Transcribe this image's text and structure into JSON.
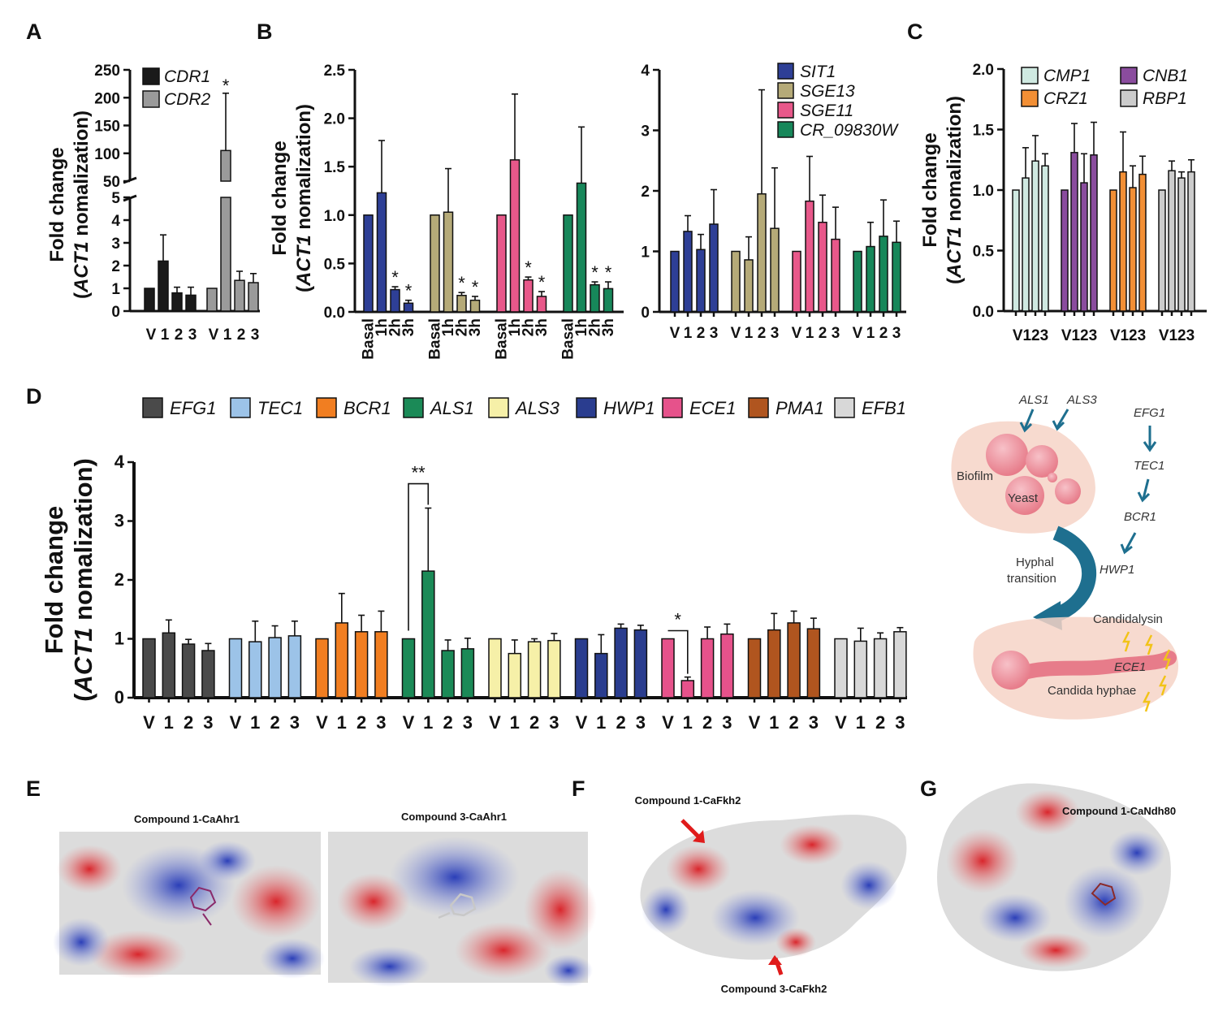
{
  "panel_labels": {
    "A": "A",
    "B": "B",
    "C": "C",
    "D": "D",
    "E": "E",
    "F": "F",
    "G": "G"
  },
  "ylabel_line1": "Fold change",
  "ylabel_gene": "ACT1",
  "ylabel_rest": " nomalization)",
  "ylabel_open": "(",
  "colors": {
    "black": "#1a1a1a",
    "grey": "#9a9a9a",
    "blue": "#2e3f96",
    "khaki": "#b5aa78",
    "pink": "#e8588a",
    "green": "#17875a",
    "mint": "#cfe9e1",
    "orange": "#f28f35",
    "purple": "#8a4c9e",
    "lightgrey": "#cccccc",
    "darkgrey": "#4a4a4a",
    "lightblue": "#9cc3e8",
    "orange2": "#f17e21",
    "green2": "#1b8a57",
    "paleyellow": "#f6f0a8",
    "navy": "#2a3d8f",
    "pink2": "#e6528b",
    "brown": "#b0551f",
    "pale": "#d8d8d8"
  },
  "chart_data": [
    {
      "id": "A",
      "type": "bar",
      "categories": [
        "V",
        "1",
        "2",
        "3"
      ],
      "series": [
        {
          "name": "CDR1",
          "color": "#1a1a1a",
          "values": [
            1,
            2.2,
            0.8,
            0.7
          ],
          "errors": [
            0,
            1.15,
            0.25,
            0.35
          ],
          "stars": [
            "",
            "",
            "",
            ""
          ]
        },
        {
          "name": "CDR2",
          "color": "#9a9a9a",
          "values": [
            1,
            105,
            1.35,
            1.25
          ],
          "errors": [
            0,
            103,
            0.4,
            0.4
          ],
          "stars": [
            "",
            "*",
            "",
            ""
          ]
        }
      ],
      "ylim_lower": [
        0,
        5
      ],
      "ylim_upper": [
        50,
        250
      ],
      "yticks_lower": [
        "0",
        "1",
        "2",
        "3",
        "4",
        "5"
      ],
      "yticks_upper": [
        "50",
        "100",
        "150",
        "200",
        "250"
      ],
      "xlabels": [
        "V",
        "1",
        "2",
        "3",
        "V",
        "1",
        "2",
        "3"
      ]
    },
    {
      "id": "B1",
      "type": "bar",
      "categories": [
        "Basal",
        "1h",
        "2h",
        "3h"
      ],
      "series": [
        {
          "name": "SIT1",
          "color": "#2e3f96",
          "values": [
            1,
            1.23,
            0.23,
            0.09
          ],
          "errors": [
            0,
            0.54,
            0.03,
            0.03
          ],
          "stars": [
            "",
            "",
            "*",
            "*"
          ]
        },
        {
          "name": "SGE13",
          "color": "#b5aa78",
          "values": [
            1,
            1.03,
            0.17,
            0.12
          ],
          "errors": [
            0,
            0.45,
            0.03,
            0.04
          ],
          "stars": [
            "",
            "",
            "*",
            "*"
          ]
        },
        {
          "name": "SGE11",
          "color": "#e8588a",
          "values": [
            1,
            1.57,
            0.33,
            0.16
          ],
          "errors": [
            0,
            0.68,
            0.03,
            0.05
          ],
          "stars": [
            "",
            "",
            "*",
            "*"
          ]
        },
        {
          "name": "CR_09830W",
          "color": "#17875a",
          "values": [
            1,
            1.33,
            0.28,
            0.24
          ],
          "errors": [
            0,
            0.58,
            0.03,
            0.07
          ],
          "stars": [
            "",
            "",
            "*",
            "*"
          ]
        }
      ],
      "ylim": [
        0,
        2.5
      ],
      "yticks": [
        "0.0",
        "0.5",
        "1.0",
        "1.5",
        "2.0",
        "2.5"
      ],
      "xlabels": [
        "Basal",
        "1h",
        "2h",
        "3h"
      ]
    },
    {
      "id": "B2",
      "type": "bar",
      "categories": [
        "V",
        "1",
        "2",
        "3"
      ],
      "series": [
        {
          "name": "SIT1",
          "color": "#2e3f96",
          "values": [
            1,
            1.33,
            1.03,
            1.45
          ],
          "errors": [
            0,
            0.26,
            0.25,
            0.57
          ],
          "stars": [
            "",
            "",
            "",
            ""
          ]
        },
        {
          "name": "SGE13",
          "color": "#b5aa78",
          "values": [
            1,
            0.86,
            1.95,
            1.38
          ],
          "errors": [
            0,
            0.38,
            1.72,
            1.0
          ],
          "stars": [
            "",
            "",
            "",
            ""
          ]
        },
        {
          "name": "SGE11",
          "color": "#e8588a",
          "values": [
            1,
            1.83,
            1.48,
            1.2
          ],
          "errors": [
            0,
            0.74,
            0.45,
            0.53
          ],
          "stars": [
            "",
            "",
            "",
            ""
          ]
        },
        {
          "name": "CR_09830W",
          "color": "#17875a",
          "values": [
            1,
            1.08,
            1.25,
            1.15
          ],
          "errors": [
            0,
            0.4,
            0.6,
            0.35
          ],
          "stars": [
            "",
            "",
            "",
            ""
          ]
        }
      ],
      "ylim": [
        0,
        4
      ],
      "yticks": [
        "0",
        "1",
        "2",
        "3",
        "4"
      ],
      "xlabels": [
        "V",
        "1",
        "2",
        "3"
      ],
      "legend": [
        "SIT1",
        "SGE13",
        "SGE11",
        "CR_09830W"
      ]
    },
    {
      "id": "C",
      "type": "bar",
      "categories": [
        "V",
        "1",
        "2",
        "3"
      ],
      "series": [
        {
          "name": "CMP1",
          "color": "#cfe9e1",
          "values": [
            1,
            1.1,
            1.24,
            1.2
          ],
          "errors": [
            0,
            0.25,
            0.21,
            0.1
          ],
          "stars": [
            "",
            "",
            "",
            ""
          ]
        },
        {
          "name": "CNB1",
          "color": "#8a4c9e",
          "values": [
            1,
            1.31,
            1.06,
            1.29
          ],
          "errors": [
            0,
            0.24,
            0.24,
            0.27
          ],
          "stars": [
            "",
            "",
            "",
            ""
          ]
        },
        {
          "name": "CRZ1",
          "color": "#f28f35",
          "values": [
            1,
            1.15,
            1.02,
            1.13
          ],
          "errors": [
            0,
            0.33,
            0.18,
            0.15
          ],
          "stars": [
            "",
            "",
            "",
            ""
          ]
        },
        {
          "name": "RBP1",
          "color": "#cccccc",
          "values": [
            1,
            1.16,
            1.1,
            1.15
          ],
          "errors": [
            0,
            0.08,
            0.05,
            0.1
          ],
          "stars": [
            "",
            "",
            "",
            ""
          ]
        }
      ],
      "ylim": [
        0,
        2.0
      ],
      "yticks": [
        "0.0",
        "0.5",
        "1.0",
        "1.5",
        "2.0"
      ],
      "xlabel_group": "V123",
      "legend": [
        "CMP1",
        "CRZ1",
        "CNB1",
        "RBP1"
      ]
    },
    {
      "id": "D",
      "type": "bar",
      "categories": [
        "V",
        "1",
        "2",
        "3"
      ],
      "series": [
        {
          "name": "EFG1",
          "color": "#4a4a4a",
          "values": [
            1,
            1.1,
            0.91,
            0.8
          ],
          "errors": [
            0,
            0.22,
            0.08,
            0.12
          ],
          "stars": [
            "",
            "",
            "",
            ""
          ]
        },
        {
          "name": "TEC1",
          "color": "#9cc3e8",
          "values": [
            1,
            0.95,
            1.02,
            1.05
          ],
          "errors": [
            0,
            0.35,
            0.2,
            0.25
          ],
          "stars": [
            "",
            "",
            "",
            ""
          ]
        },
        {
          "name": "BCR1",
          "color": "#f17e21",
          "values": [
            1,
            1.27,
            1.12,
            1.12
          ],
          "errors": [
            0,
            0.5,
            0.28,
            0.35
          ],
          "stars": [
            "",
            "",
            "",
            ""
          ]
        },
        {
          "name": "ALS1",
          "color": "#1b8a57",
          "values": [
            1,
            2.15,
            0.8,
            0.83
          ],
          "errors": [
            0,
            1.07,
            0.18,
            0.18
          ],
          "stars": [
            "",
            "",
            "",
            ""
          ]
        },
        {
          "name": "ALS3",
          "color": "#f6f0a8",
          "values": [
            1,
            0.75,
            0.95,
            0.97
          ],
          "errors": [
            0,
            0.23,
            0.05,
            0.12
          ],
          "stars": [
            "",
            "",
            "",
            ""
          ]
        },
        {
          "name": "HWP1",
          "color": "#2a3d8f",
          "values": [
            1,
            0.75,
            1.18,
            1.15
          ],
          "errors": [
            0,
            0.32,
            0.07,
            0.08
          ],
          "stars": [
            "",
            "",
            "",
            ""
          ]
        },
        {
          "name": "ECE1",
          "color": "#e6528b",
          "values": [
            1,
            0.29,
            1.0,
            1.08
          ],
          "errors": [
            0,
            0.06,
            0.2,
            0.17
          ],
          "stars": [
            "",
            "",
            "",
            ""
          ]
        },
        {
          "name": "PMA1",
          "color": "#b0551f",
          "values": [
            1,
            1.15,
            1.27,
            1.17
          ],
          "errors": [
            0,
            0.28,
            0.2,
            0.18
          ],
          "stars": [
            "",
            "",
            "",
            ""
          ]
        },
        {
          "name": "EFB1",
          "color": "#d8d8d8",
          "values": [
            1,
            0.96,
            1.0,
            1.12
          ],
          "errors": [
            0,
            0.22,
            0.1,
            0.07
          ],
          "stars": [
            "",
            "",
            "",
            ""
          ]
        }
      ],
      "ylim": [
        0,
        4
      ],
      "yticks": [
        "0",
        "1",
        "2",
        "3",
        "4"
      ],
      "xlabels": [
        "V",
        "1",
        "2",
        "3"
      ],
      "legend": [
        "EFG1",
        "TEC1",
        "BCR1",
        "ALS1",
        "ALS3",
        "HWP1",
        "ECE1",
        "PMA1",
        "EFB1"
      ],
      "brackets": [
        {
          "group": 3,
          "from": 0,
          "to": 1,
          "label": "**"
        },
        {
          "group": 6,
          "from": 0,
          "to": 1,
          "label": "*"
        }
      ]
    }
  ],
  "schematic": {
    "als1": "ALS1",
    "als3": "ALS3",
    "efg1": "EFG1",
    "tec1": "TEC1",
    "bcr1": "BCR1",
    "hwp1": "HWP1",
    "biofilm": "Biofilm",
    "yeast": "Yeast",
    "hyphal1": "Hyphal",
    "hyphal2": "transition",
    "candidalysin": "Candidalysin",
    "ece1": "ECE1",
    "hyphae": "Candida hyphae"
  },
  "molecules": {
    "e_left": "Compound 1-CaAhr1",
    "e_right": "Compound 3-CaAhr1",
    "f_top": "Compound 1-CaFkh2",
    "f_bottom": "Compound 3-CaFkh2",
    "g_top": "Compound 1-CaNdh80"
  }
}
